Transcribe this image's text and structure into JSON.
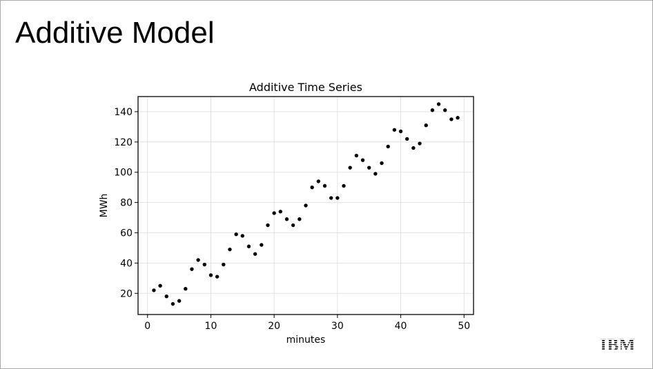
{
  "slide": {
    "title": "Additive Model"
  },
  "chart_data": {
    "type": "scatter",
    "title": "Additive Time Series",
    "xlabel": "minutes",
    "ylabel": "MWh",
    "xlim": [
      -1.5,
      51.5
    ],
    "ylim": [
      6,
      150
    ],
    "xticks": [
      0,
      10,
      20,
      30,
      40,
      50
    ],
    "yticks": [
      20,
      40,
      60,
      80,
      100,
      120,
      140
    ],
    "grid": true,
    "marker_color": "#000000",
    "series": [
      {
        "x": [
          1,
          2,
          3,
          4,
          5,
          6,
          7,
          8,
          9,
          10,
          11,
          12,
          13,
          14,
          15,
          16,
          17,
          18,
          19,
          20,
          21,
          22,
          23,
          24,
          25,
          26,
          27,
          28,
          29,
          30,
          31,
          32,
          33,
          34,
          35,
          36,
          37,
          38,
          39,
          40,
          41,
          42,
          43,
          44,
          45,
          46,
          47,
          48,
          49
        ],
        "y": [
          22,
          25,
          18,
          13,
          15,
          23,
          36,
          42,
          39,
          32,
          31,
          39,
          49,
          59,
          58,
          51,
          46,
          52,
          65,
          73,
          74,
          69,
          65,
          69,
          78,
          90,
          94,
          91,
          83,
          83,
          91,
          103,
          111,
          108,
          103,
          99,
          106,
          117,
          128,
          127,
          122,
          116,
          119,
          131,
          141,
          145,
          141,
          135,
          136
        ]
      }
    ]
  },
  "brand": {
    "logo_text": "IBM",
    "icon": "ibm-logo"
  }
}
